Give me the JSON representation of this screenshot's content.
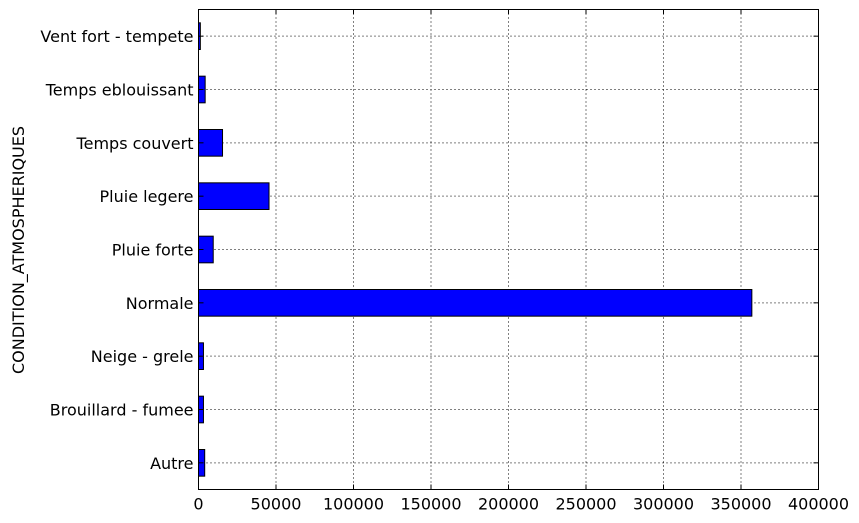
{
  "chart_data": {
    "type": "bar",
    "orientation": "horizontal",
    "categories": [
      "Autre",
      "Brouillard - fumee",
      "Neige - grele",
      "Normale",
      "Pluie forte",
      "Pluie legere",
      "Temps couvert",
      "Temps eblouissant",
      "Vent fort - tempete"
    ],
    "values": [
      4000,
      3200,
      3200,
      357000,
      9500,
      45500,
      15500,
      4300,
      1200
    ],
    "title": "",
    "xlabel": "",
    "ylabel": "CONDITION_ATMOSPHERIQUES",
    "xlim": [
      0,
      400000
    ],
    "xticks": [
      0,
      50000,
      100000,
      150000,
      200000,
      250000,
      300000,
      350000,
      400000
    ],
    "xtick_labels": [
      "0",
      "50000",
      "100000",
      "150000",
      "200000",
      "250000",
      "300000",
      "350000",
      "400000"
    ],
    "grid": true,
    "bar_color": "#0000ff",
    "edge_color": "#000000"
  }
}
